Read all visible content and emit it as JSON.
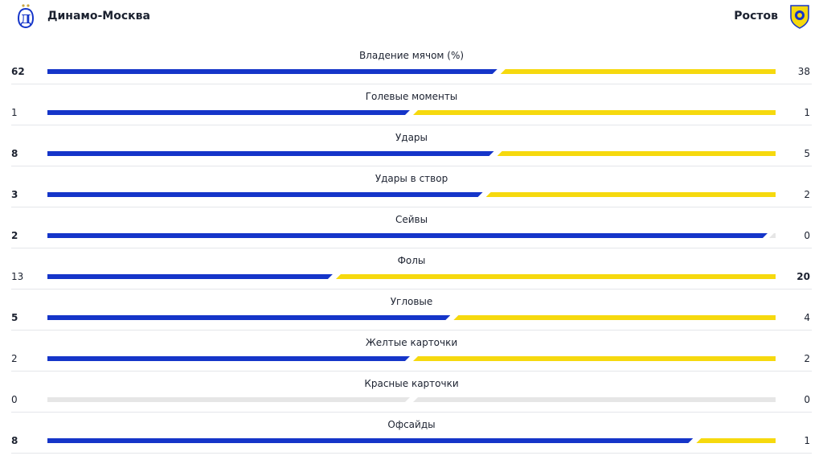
{
  "teams": {
    "home": {
      "name": "Динамо-Москва",
      "crest_icon": "dynamo-crest-icon",
      "color": "#1535c9"
    },
    "away": {
      "name": "Ростов",
      "crest_icon": "rostov-crest-icon",
      "color": "#f6d90e"
    }
  },
  "stats": [
    {
      "label": "Владение мячом (%)",
      "home": "62",
      "away": "38",
      "bold": "home"
    },
    {
      "label": "Голевые моменты",
      "home": "1",
      "away": "1",
      "bold": ""
    },
    {
      "label": "Удары",
      "home": "8",
      "away": "5",
      "bold": "home"
    },
    {
      "label": "Удары в створ",
      "home": "3",
      "away": "2",
      "bold": "home"
    },
    {
      "label": "Сейвы",
      "home": "2",
      "away": "0",
      "bold": "home"
    },
    {
      "label": "Фолы",
      "home": "13",
      "away": "20",
      "bold": "away"
    },
    {
      "label": "Угловые",
      "home": "5",
      "away": "4",
      "bold": "home"
    },
    {
      "label": "Желтые карточки",
      "home": "2",
      "away": "2",
      "bold": ""
    },
    {
      "label": "Красные карточки",
      "home": "0",
      "away": "0",
      "bold": ""
    },
    {
      "label": "Офсайды",
      "home": "8",
      "away": "1",
      "bold": "home"
    }
  ]
}
